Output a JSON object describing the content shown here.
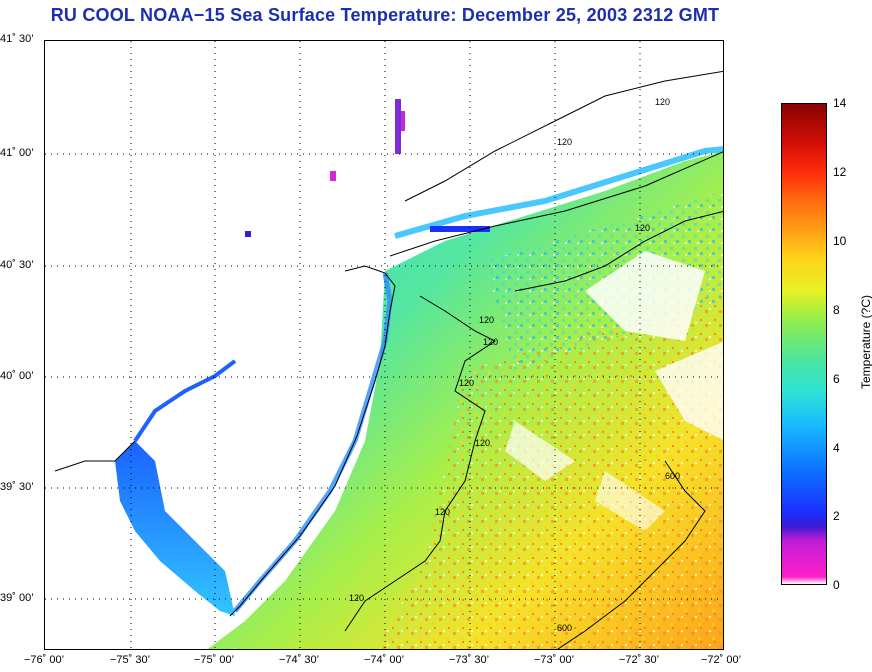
{
  "title": "RU COOL  NOAA−15  Sea Surface Temperature:  December 25, 2003 2312 GMT",
  "latitude_labels": [
    "41˚ 30’",
    "41˚ 00’",
    "40˚ 30’",
    "40˚ 00’",
    "39˚ 30’",
    "39˚ 00’"
  ],
  "longitude_labels": [
    "−76˚ 00’",
    "−75˚ 30’",
    "−75˚ 00’",
    "−74˚ 30’",
    "−74˚ 00’",
    "−73˚ 30’",
    "−73˚ 00’",
    "−72˚ 30’",
    "−72˚ 00’"
  ],
  "colorbar": {
    "title": "Temperature (?C)",
    "ticks": [
      "14",
      "12",
      "10",
      "8",
      "6",
      "4",
      "2",
      "0"
    ],
    "min": 0,
    "max": 14
  },
  "contour_labels": [
    "120",
    "120",
    "120",
    "120",
    "120",
    "120",
    "120",
    "120",
    "120",
    "600",
    "600"
  ],
  "colors": {
    "title": "#1b2fb0",
    "land": "#ffffff",
    "coast": "#000000"
  }
}
